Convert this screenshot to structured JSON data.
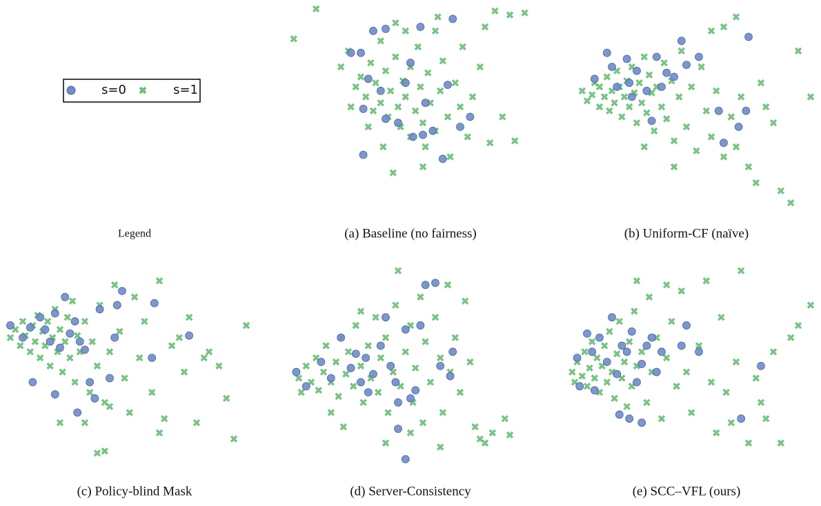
{
  "legend_panel": {
    "caption": "Legend"
  },
  "chart_data": [
    {
      "type": "scatter",
      "title": "(a) Baseline (no fairness)",
      "xlim": [
        0,
        100
      ],
      "ylim": [
        0,
        100
      ],
      "series": [
        {
          "name": "s=0",
          "color": "#6f8cc7",
          "x": [
            26,
            30,
            35,
            31,
            33,
            38,
            40,
            45,
            48,
            50,
            51,
            55,
            56,
            59,
            63,
            65,
            67,
            70,
            74,
            31,
            40,
            54
          ],
          "y": [
            77,
            77,
            88,
            49,
            64,
            58,
            44,
            42,
            62,
            72,
            35,
            36,
            52,
            38,
            24,
            61,
            94,
            40,
            45,
            26,
            89,
            90
          ]
        },
        {
          "name": "s=1",
          "color": "#6cbd78",
          "x": [
            3,
            12,
            22,
            25,
            28,
            30,
            32,
            34,
            35,
            36,
            38,
            40,
            41,
            42,
            44,
            45,
            46,
            47,
            48,
            50,
            50,
            52,
            53,
            54,
            55,
            56,
            57,
            58,
            60,
            60,
            62,
            63,
            65,
            66,
            68,
            70,
            71,
            73,
            75,
            78,
            80,
            82,
            84,
            87,
            90,
            92,
            96,
            43,
            55,
            48,
            38,
            33,
            39,
            61,
            44,
            26
          ],
          "y": [
            84,
            99,
            70,
            78,
            60,
            65,
            55,
            72,
            48,
            62,
            52,
            68,
            45,
            58,
            75,
            50,
            40,
            63,
            55,
            70,
            35,
            48,
            80,
            60,
            42,
            30,
            67,
            52,
            88,
            38,
            58,
            73,
            45,
            25,
            62,
            50,
            80,
            35,
            55,
            70,
            90,
            32,
            98,
            45,
            96,
            33,
            97,
            17,
            20,
            88,
            83,
            40,
            30,
            95,
            92,
            50
          ]
        }
      ]
    },
    {
      "type": "scatter",
      "title": "(b) Uniform-CF (naïve)",
      "xlim": [
        0,
        100
      ],
      "ylim": [
        0,
        100
      ],
      "series": [
        {
          "name": "s=0",
          "color": "#6f8cc7",
          "x": [
            13,
            18,
            20,
            22,
            26,
            27,
            28,
            30,
            34,
            36,
            38,
            40,
            42,
            45,
            48,
            50,
            55,
            63,
            65,
            71,
            75,
            74
          ],
          "y": [
            64,
            77,
            70,
            60,
            74,
            62,
            55,
            68,
            58,
            43,
            75,
            60,
            67,
            65,
            83,
            71,
            75,
            48,
            32,
            40,
            85,
            48
          ]
        },
        {
          "name": "s=1",
          "color": "#6cbd78",
          "x": [
            8,
            10,
            12,
            13,
            15,
            15,
            17,
            18,
            19,
            20,
            21,
            22,
            23,
            24,
            25,
            26,
            27,
            28,
            29,
            30,
            31,
            32,
            33,
            34,
            35,
            36,
            37,
            38,
            40,
            41,
            42,
            44,
            45,
            47,
            48,
            50,
            52,
            54,
            56,
            58,
            60,
            62,
            65,
            68,
            70,
            72,
            75,
            78,
            82,
            85,
            88,
            92,
            80,
            95,
            100,
            70,
            65,
            60,
            45,
            33
          ],
          "y": [
            58,
            53,
            56,
            62,
            50,
            60,
            55,
            65,
            48,
            58,
            52,
            68,
            60,
            45,
            55,
            63,
            50,
            70,
            57,
            42,
            62,
            52,
            75,
            47,
            66,
            57,
            38,
            60,
            50,
            72,
            44,
            63,
            33,
            55,
            78,
            40,
            60,
            28,
            70,
            48,
            35,
            58,
            25,
            45,
            30,
            55,
            20,
            12,
            50,
            42,
            8,
            2,
            62,
            78,
            55,
            95,
            90,
            88,
            20,
            30
          ]
        }
      ]
    },
    {
      "type": "scatter",
      "title": "(c) Policy-blind Mask",
      "xlim": [
        0,
        100
      ],
      "ylim": [
        0,
        100
      ],
      "series": [
        {
          "name": "s=0",
          "color": "#6f8cc7",
          "x": [
            0,
            5,
            8,
            12,
            14,
            16,
            18,
            20,
            22,
            24,
            26,
            28,
            30,
            32,
            34,
            36,
            40,
            42,
            45,
            43,
            57,
            58,
            72,
            9,
            18,
            27
          ],
          "y": [
            68,
            62,
            67,
            72,
            66,
            60,
            74,
            57,
            82,
            64,
            70,
            60,
            56,
            40,
            32,
            76,
            42,
            62,
            85,
            78,
            52,
            79,
            63,
            40,
            34,
            25
          ]
        },
        {
          "name": "s=1",
          "color": "#6cbd78",
          "x": [
            0,
            2,
            4,
            5,
            6,
            8,
            9,
            10,
            11,
            12,
            13,
            14,
            15,
            16,
            17,
            18,
            19,
            20,
            21,
            22,
            23,
            24,
            25,
            26,
            27,
            28,
            30,
            32,
            33,
            35,
            36,
            38,
            40,
            42,
            44,
            46,
            48,
            50,
            52,
            54,
            57,
            60,
            62,
            65,
            68,
            70,
            72,
            75,
            78,
            80,
            84,
            87,
            90,
            95,
            60,
            35,
            38,
            30,
            40,
            20
          ],
          "y": [
            62,
            66,
            58,
            70,
            63,
            55,
            68,
            60,
            73,
            52,
            65,
            58,
            70,
            48,
            62,
            76,
            55,
            66,
            45,
            60,
            72,
            52,
            80,
            40,
            63,
            55,
            70,
            35,
            60,
            48,
            78,
            30,
            55,
            88,
            65,
            42,
            25,
            82,
            52,
            70,
            35,
            90,
            22,
            58,
            62,
            45,
            72,
            20,
            52,
            55,
            48,
            32,
            12,
            68,
            15,
            5,
            6,
            20,
            28,
            20
          ]
        }
      ]
    },
    {
      "type": "scatter",
      "title": "(d) Server-Consistency",
      "xlim": [
        0,
        100
      ],
      "ylim": [
        0,
        100
      ],
      "series": [
        {
          "name": "s=0",
          "color": "#6f8cc7",
          "x": [
            4,
            8,
            14,
            18,
            22,
            26,
            28,
            30,
            32,
            33,
            35,
            38,
            40,
            42,
            44,
            45,
            48,
            50,
            52,
            54,
            56,
            60,
            62,
            66,
            45,
            48,
            67
          ],
          "y": [
            45,
            38,
            50,
            42,
            62,
            47,
            54,
            40,
            52,
            35,
            44,
            58,
            72,
            48,
            40,
            30,
            66,
            32,
            36,
            68,
            88,
            89,
            48,
            43,
            17,
            2,
            55
          ]
        },
        {
          "name": "s=1",
          "color": "#6cbd78",
          "x": [
            5,
            6,
            8,
            10,
            12,
            13,
            15,
            16,
            18,
            20,
            21,
            22,
            24,
            25,
            27,
            28,
            30,
            31,
            33,
            34,
            36,
            37,
            38,
            40,
            41,
            43,
            44,
            46,
            48,
            50,
            51,
            52,
            54,
            55,
            56,
            58,
            60,
            62,
            63,
            65,
            66,
            68,
            70,
            72,
            74,
            76,
            78,
            80,
            83,
            88,
            90,
            45,
            30,
            23,
            40,
            50,
            62,
            18
          ],
          "y": [
            42,
            35,
            48,
            40,
            52,
            36,
            45,
            58,
            40,
            50,
            33,
            62,
            44,
            55,
            38,
            68,
            48,
            30,
            58,
            42,
            72,
            35,
            52,
            62,
            25,
            45,
            78,
            38,
            55,
            68,
            30,
            47,
            82,
            20,
            60,
            40,
            72,
            52,
            25,
            88,
            45,
            62,
            35,
            80,
            50,
            18,
            12,
            10,
            15,
            22,
            14,
            95,
            75,
            18,
            10,
            15,
            8,
            25
          ]
        }
      ]
    },
    {
      "type": "scatter",
      "title": "(e) SCC–VFL (ours)",
      "xlim": [
        0,
        100
      ],
      "ylim": [
        0,
        100
      ],
      "series": [
        {
          "name": "s=0",
          "color": "#6f8cc7",
          "x": [
            6,
            7,
            10,
            12,
            13,
            15,
            18,
            20,
            22,
            24,
            26,
            28,
            30,
            32,
            34,
            36,
            38,
            40,
            48,
            50,
            55,
            23,
            27,
            72,
            80,
            32
          ],
          "y": [
            52,
            38,
            64,
            55,
            36,
            62,
            50,
            72,
            44,
            58,
            55,
            65,
            40,
            49,
            58,
            62,
            45,
            55,
            58,
            68,
            55,
            24,
            22,
            22,
            48,
            20
          ]
        },
        {
          "name": "s=1",
          "color": "#6cbd78",
          "x": [
            4,
            5,
            6,
            8,
            9,
            10,
            11,
            12,
            13,
            14,
            15,
            16,
            17,
            18,
            19,
            20,
            21,
            22,
            23,
            24,
            25,
            26,
            27,
            28,
            29,
            30,
            32,
            34,
            35,
            36,
            38,
            40,
            42,
            44,
            46,
            48,
            50,
            52,
            55,
            58,
            60,
            62,
            64,
            66,
            68,
            70,
            72,
            75,
            78,
            80,
            82,
            85,
            88,
            92,
            100,
            95,
            42,
            30
          ],
          "y": [
            45,
            40,
            50,
            43,
            55,
            38,
            47,
            60,
            42,
            52,
            35,
            48,
            58,
            40,
            65,
            45,
            32,
            54,
            70,
            42,
            50,
            28,
            60,
            38,
            75,
            48,
            55,
            30,
            82,
            45,
            62,
            22,
            52,
            70,
            38,
            85,
            45,
            25,
            58,
            90,
            40,
            15,
            72,
            35,
            20,
            50,
            95,
            10,
            42,
            30,
            22,
            55,
            10,
            62,
            78,
            68,
            88,
            90
          ]
        }
      ]
    }
  ]
}
